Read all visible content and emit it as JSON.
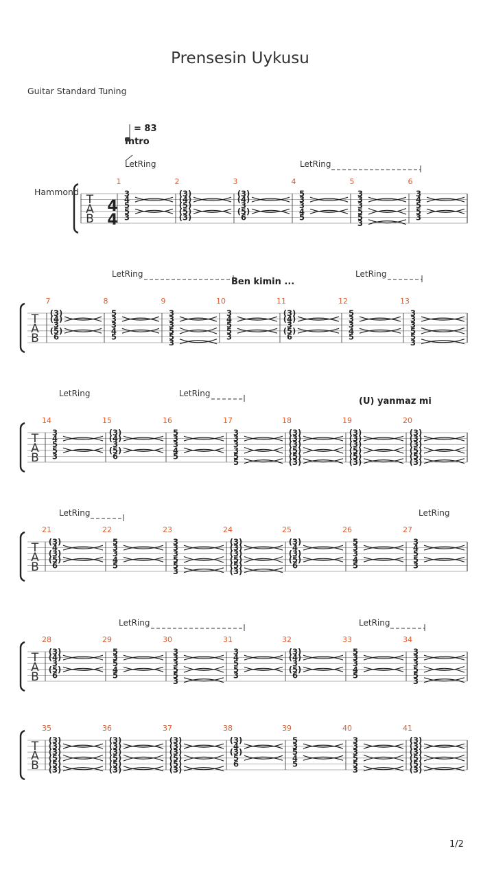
{
  "title": "Prensesin Uykusu",
  "tuning": "Guitar Standard Tuning",
  "tempo": "= 83",
  "section": "Intro",
  "instrument": "Hammond",
  "page_number": "1/2",
  "time_signature": [
    "4",
    "4"
  ],
  "tab_letters": [
    "T",
    "A",
    "B"
  ],
  "annotations": {
    "let_ring": "LetRing",
    "lyric_1": "Ben kimin ...",
    "lyric_2": "(U) yanmaz mi"
  },
  "systems": [
    {
      "measures": [
        {
          "n": "1",
          "notes": [
            "3",
            "4",
            "5",
            "5",
            "3",
            ""
          ]
        },
        {
          "n": "2",
          "notes": [
            "(3)",
            "(4)",
            "(5)",
            "(5)",
            "(3)",
            ""
          ]
        },
        {
          "n": "3",
          "notes": [
            "(3)",
            "(4)",
            "3",
            "(5)",
            "6",
            ""
          ]
        },
        {
          "n": "4",
          "notes": [
            "5",
            "3",
            "3",
            "4",
            "5",
            ""
          ]
        },
        {
          "n": "5",
          "notes": [
            "3",
            "3",
            "3",
            "5",
            "5",
            "3"
          ]
        },
        {
          "n": "6",
          "notes": [
            "3",
            "4",
            "5",
            "5",
            "3",
            ""
          ]
        }
      ],
      "let_ring": [
        {
          "label": "LetRing",
          "dashes": false
        },
        {
          "label": "LetRing",
          "dashes": true
        }
      ]
    },
    {
      "measures": [
        {
          "n": "7",
          "notes": [
            "(3)",
            "(4)",
            "3",
            "(5)",
            "6",
            ""
          ]
        },
        {
          "n": "8",
          "notes": [
            "5",
            "3",
            "3",
            "4",
            "5",
            ""
          ]
        },
        {
          "n": "9",
          "notes": [
            "3",
            "3",
            "3",
            "5",
            "5",
            "3"
          ]
        },
        {
          "n": "10",
          "notes": [
            "3",
            "4",
            "5",
            "5",
            "3",
            ""
          ]
        },
        {
          "n": "11",
          "notes": [
            "(3)",
            "(4)",
            "3",
            "(5)",
            "6",
            ""
          ]
        },
        {
          "n": "12",
          "notes": [
            "5",
            "3",
            "3",
            "4",
            "5",
            ""
          ]
        },
        {
          "n": "13",
          "notes": [
            "3",
            "3",
            "3",
            "5",
            "5",
            "3"
          ]
        }
      ]
    },
    {
      "measures": [
        {
          "n": "14",
          "notes": [
            "3",
            "4",
            "5",
            "5",
            "3",
            ""
          ]
        },
        {
          "n": "15",
          "notes": [
            "(3)",
            "(4)",
            "3",
            "(5)",
            "6",
            ""
          ]
        },
        {
          "n": "16",
          "notes": [
            "5",
            "3",
            "3",
            "4",
            "5",
            ""
          ]
        },
        {
          "n": "17",
          "notes": [
            "3",
            "3",
            "3",
            "3",
            "5",
            "5"
          ]
        },
        {
          "n": "18",
          "notes": [
            "(3)",
            "(3)",
            "(3)",
            "(5)",
            "(5)",
            "(3)"
          ]
        },
        {
          "n": "19",
          "notes": [
            "(3)",
            "(3)",
            "(3)",
            "(5)",
            "(5)",
            "(3)"
          ]
        },
        {
          "n": "20",
          "notes": [
            "(3)",
            "(3)",
            "(3)",
            "(5)",
            "(5)",
            "(3)"
          ]
        }
      ]
    },
    {
      "measures": [
        {
          "n": "21",
          "notes": [
            "(3)",
            "4",
            "(3)",
            "(5)",
            "6",
            ""
          ]
        },
        {
          "n": "22",
          "notes": [
            "5",
            "3",
            "3",
            "4",
            "5",
            ""
          ]
        },
        {
          "n": "23",
          "notes": [
            "3",
            "3",
            "3",
            "5",
            "5",
            "3"
          ]
        },
        {
          "n": "24",
          "notes": [
            "(3)",
            "(3)",
            "(3)",
            "(5)",
            "(5)",
            "(3)"
          ]
        },
        {
          "n": "25",
          "notes": [
            "(3)",
            "4",
            "(3)",
            "(5)",
            "6",
            ""
          ]
        },
        {
          "n": "26",
          "notes": [
            "5",
            "3",
            "3",
            "4",
            "5",
            ""
          ]
        },
        {
          "n": "27",
          "notes": [
            "3",
            "4",
            "5",
            "5",
            "3",
            ""
          ]
        }
      ]
    },
    {
      "measures": [
        {
          "n": "28",
          "notes": [
            "(3)",
            "(4)",
            "3",
            "(5)",
            "6",
            ""
          ]
        },
        {
          "n": "29",
          "notes": [
            "5",
            "3",
            "5",
            "4",
            "5",
            ""
          ]
        },
        {
          "n": "30",
          "notes": [
            "3",
            "3",
            "3",
            "5",
            "5",
            "3"
          ]
        },
        {
          "n": "31",
          "notes": [
            "3",
            "4",
            "5",
            "5",
            "3",
            ""
          ]
        },
        {
          "n": "32",
          "notes": [
            "(3)",
            "(4)",
            "3",
            "(5)",
            "6",
            ""
          ]
        },
        {
          "n": "33",
          "notes": [
            "5",
            "3",
            "3",
            "4",
            "5",
            ""
          ]
        },
        {
          "n": "34",
          "notes": [
            "3",
            "3",
            "3",
            "5",
            "5",
            "3"
          ]
        }
      ]
    },
    {
      "measures": [
        {
          "n": "35",
          "notes": [
            "(3)",
            "(3)",
            "(3)",
            "(5)",
            "(5)",
            "(3)"
          ]
        },
        {
          "n": "36",
          "notes": [
            "(3)",
            "(3)",
            "(3)",
            "(5)",
            "(5)",
            "(3)"
          ]
        },
        {
          "n": "37",
          "notes": [
            "(3)",
            "(3)",
            "(3)",
            "(5)",
            "(5)",
            "(3)"
          ]
        },
        {
          "n": "38",
          "notes": [
            "(3)",
            "4",
            "(3)",
            "5",
            "6",
            ""
          ]
        },
        {
          "n": "39",
          "notes": [
            "5",
            "3",
            "5",
            "4",
            "5",
            ""
          ]
        },
        {
          "n": "40",
          "notes": [
            "3",
            "3",
            "3",
            "5",
            "5",
            "3"
          ]
        },
        {
          "n": "41",
          "notes": [
            "(3)",
            "(3)",
            "(3)",
            "(5)",
            "(5)",
            "(3)"
          ]
        }
      ]
    }
  ]
}
